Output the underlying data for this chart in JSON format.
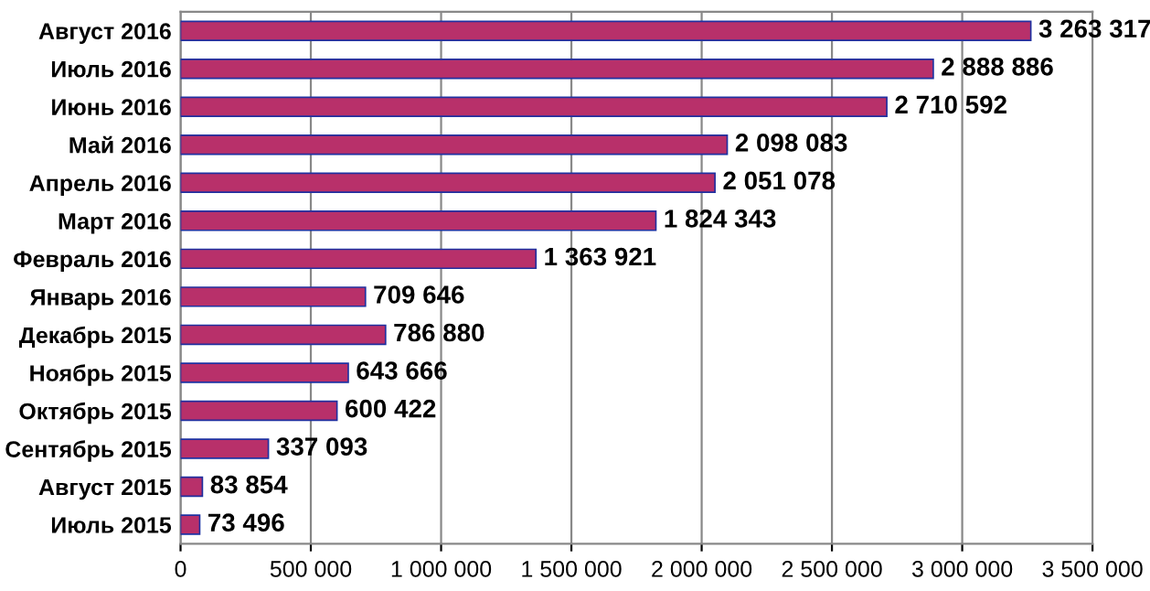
{
  "chart_data": {
    "type": "bar",
    "orientation": "horizontal",
    "categories": [
      "Август 2016",
      "Июль 2016",
      "Июнь 2016",
      "Май 2016",
      "Апрель 2016",
      "Март 2016",
      "Февраль 2016",
      "Январь 2016",
      "Декабрь 2015",
      "Ноябрь 2015",
      "Октябрь 2015",
      "Сентябрь 2015",
      "Август 2015",
      "Июль 2015"
    ],
    "values": [
      3263317,
      2888886,
      2710592,
      2098083,
      2051078,
      1824343,
      1363921,
      709646,
      786880,
      643666,
      600422,
      337093,
      83854,
      73496
    ],
    "value_labels": [
      "3 263 317",
      "2 888 886",
      "2 710 592",
      "2 098 083",
      "2 051 078",
      "1 824 343",
      "1 363 921",
      "709 646",
      "786 880",
      "643 666",
      "600 422",
      "337 093",
      "83 854",
      "73 496"
    ],
    "color": "#b8306a",
    "xlim": [
      0,
      3500000
    ],
    "xticks": [
      0,
      {
        "value": 500000,
        "label": "500 000"
      },
      {
        "value": 1000000,
        "label": "1 000 000"
      },
      {
        "value": 1500000,
        "label": "1 500 000"
      },
      {
        "value": 2000000,
        "label": "2 000 000"
      },
      {
        "value": 2500000,
        "label": "2 500 000"
      },
      {
        "value": 3000000,
        "label": "3 000 000"
      },
      {
        "value": 3500000,
        "label": "3 500 000"
      }
    ],
    "grid": "x"
  }
}
